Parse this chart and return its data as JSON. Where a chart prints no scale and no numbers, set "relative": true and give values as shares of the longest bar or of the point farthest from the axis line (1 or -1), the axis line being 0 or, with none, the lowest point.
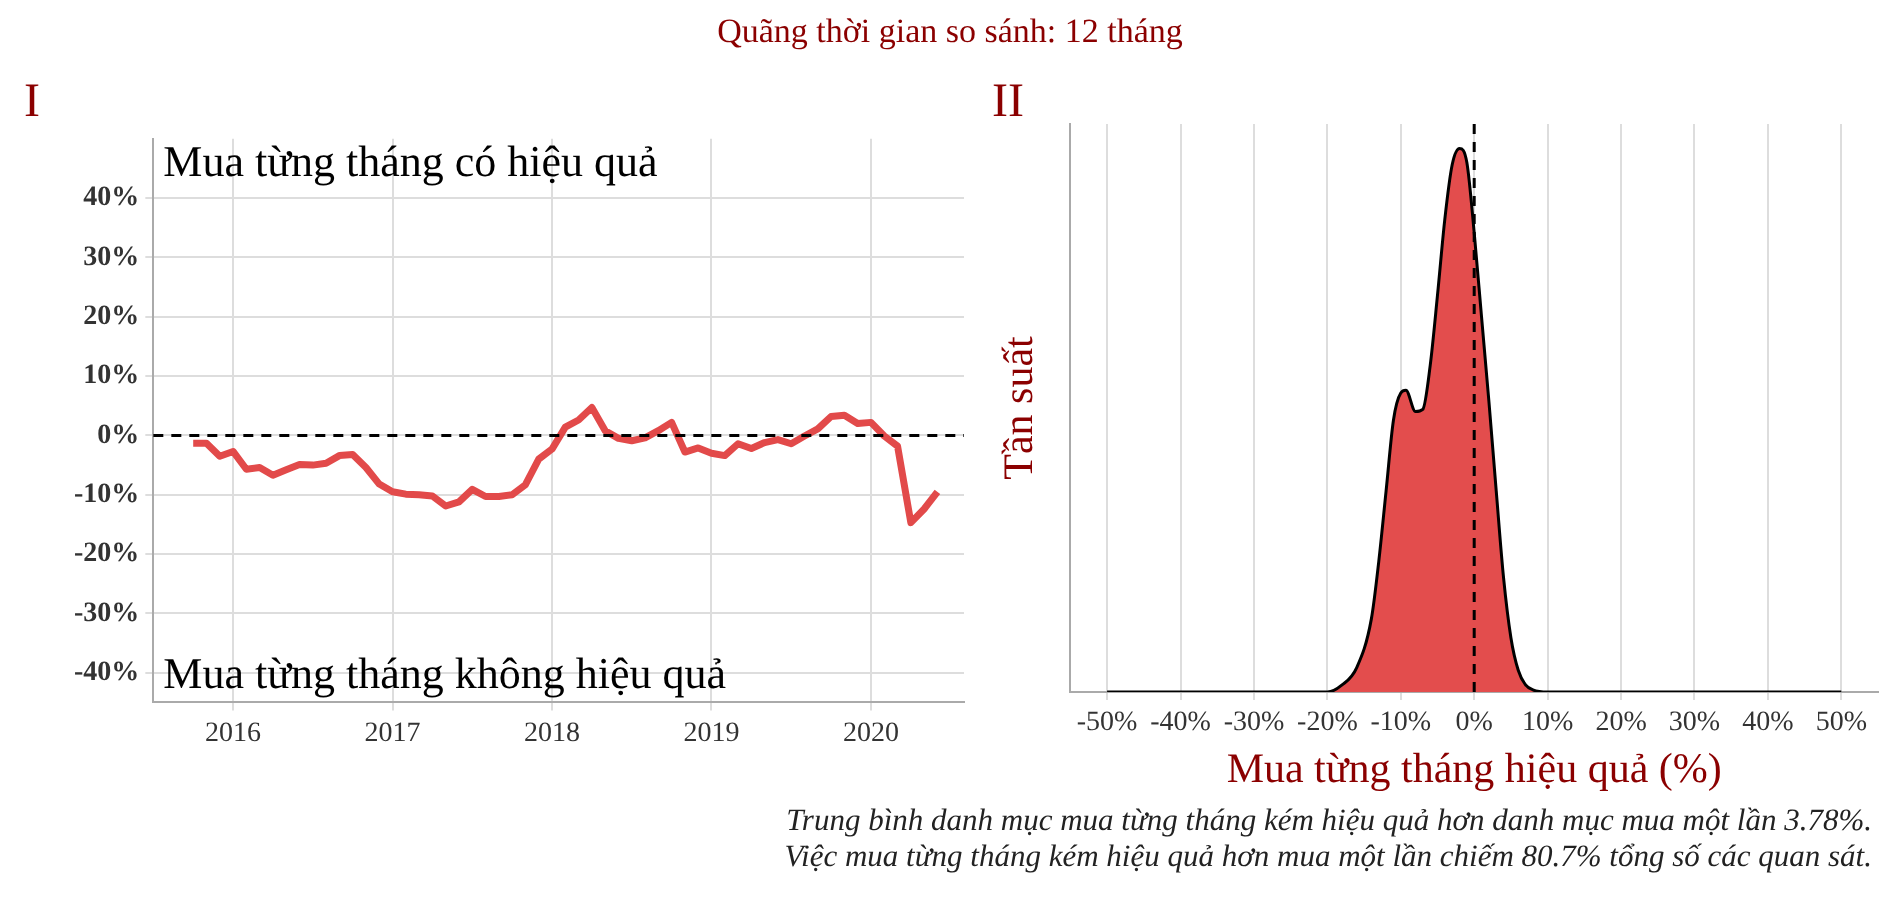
{
  "chart_data": [
    {
      "type": "line",
      "title": "Quãng thời gian so sánh: 12 tháng",
      "annotations": [
        "I",
        "Mua từng tháng có hiệu quả",
        "Mua từng tháng không hiệu quả"
      ],
      "x": [
        "2015-10",
        "2015-11",
        "2015-12",
        "2016-01",
        "2016-02",
        "2016-03",
        "2016-04",
        "2016-05",
        "2016-06",
        "2016-07",
        "2016-08",
        "2016-09",
        "2016-10",
        "2016-11",
        "2016-12",
        "2017-01",
        "2017-02",
        "2017-03",
        "2017-04",
        "2017-05",
        "2017-06",
        "2017-07",
        "2017-08",
        "2017-09",
        "2017-10",
        "2017-11",
        "2017-12",
        "2018-01",
        "2018-02",
        "2018-03",
        "2018-04",
        "2018-05",
        "2018-06",
        "2018-07",
        "2018-08",
        "2018-09",
        "2018-10",
        "2018-11",
        "2018-12",
        "2019-01",
        "2019-02",
        "2019-03",
        "2019-04",
        "2019-05",
        "2019-06",
        "2019-07",
        "2019-08",
        "2019-09",
        "2019-10",
        "2019-11",
        "2019-12",
        "2020-01",
        "2020-02",
        "2020-03",
        "2020-04",
        "2020-05",
        "2020-06"
      ],
      "series": [
        {
          "color": "#e24a4a",
          "values": [
            -1.3,
            -1.3,
            -3.5,
            -2.7,
            -5.7,
            -5.4,
            -6.7,
            -5.8,
            -4.9,
            -5,
            -4.7,
            -3.4,
            -3.2,
            -5.4,
            -8.2,
            -9.5,
            -9.9,
            -10,
            -10.2,
            -11.9,
            -11.2,
            -9.1,
            -10.3,
            -10.3,
            -10,
            -8.3,
            -4,
            -2.3,
            1.4,
            2.6,
            4.7,
            0.8,
            -0.5,
            -0.9,
            -0.4,
            0.8,
            2.2,
            -2.8,
            -2.1,
            -3,
            -3.4,
            -1.4,
            -2.2,
            -1.2,
            -0.7,
            -1.4,
            -0.1,
            1.1,
            3.2,
            3.4,
            2,
            2.2,
            -0.1,
            -1.8,
            -14.7,
            -12.4,
            -9.5
          ]
        }
      ],
      "xlim": [
        "2015-07",
        "2020-08"
      ],
      "xticks": [
        "2016",
        "2017",
        "2018",
        "2019",
        "2020"
      ],
      "ylim": [
        -45,
        50
      ],
      "yticks": [
        {
          "value": -40,
          "label": "-40%"
        },
        {
          "value": -30,
          "label": "-30%"
        },
        {
          "value": -20,
          "label": "-20%"
        },
        {
          "value": -10,
          "label": "-10%"
        },
        {
          "value": 0,
          "label": "0%"
        },
        {
          "value": 10,
          "label": "10%"
        },
        {
          "value": 20,
          "label": "20%"
        },
        {
          "value": 30,
          "label": "30%"
        },
        {
          "value": 40,
          "label": "40%"
        }
      ],
      "ref_lines": [
        {
          "axis": "y",
          "value": 0,
          "color": "#000000",
          "line_style": "dashed"
        }
      ],
      "grid": true,
      "marker": "none",
      "line_style": "solid"
    },
    {
      "type": "area",
      "annotations": [
        "II",
        "Trung bình danh mục mua từng tháng kém hiệu quả hơn danh mục mua một lần 3.78%.",
        "Việc mua từng tháng kém hiệu quả hơn mua một lần chiếm 80.7% tổng số các quan sát."
      ],
      "xlabel": "Mua từng tháng hiệu quả (%)",
      "ylabel": "Tần suất",
      "relative": true,
      "x": [
        -50,
        -20,
        -18,
        -16,
        -14,
        -13,
        -12,
        -11,
        -10,
        -9.3,
        -8,
        -7,
        -6,
        -5,
        -4,
        -3,
        -2,
        -1,
        0,
        1,
        2,
        3,
        4,
        5,
        6,
        7,
        8,
        10,
        50
      ],
      "series": [
        {
          "color": "#e34d4d",
          "values": [
            0,
            0,
            0.013,
            0.045,
            0.135,
            0.24,
            0.37,
            0.5,
            0.55,
            0.555,
            0.516,
            0.52,
            0.6,
            0.73,
            0.87,
            0.97,
            1,
            0.974,
            0.845,
            0.69,
            0.535,
            0.37,
            0.21,
            0.1,
            0.04,
            0.013,
            0.004,
            0,
            0
          ]
        }
      ],
      "xlim": [
        -55,
        55
      ],
      "xticks": [
        {
          "value": -50,
          "label": "-50%"
        },
        {
          "value": -40,
          "label": "-40%"
        },
        {
          "value": -30,
          "label": "-30%"
        },
        {
          "value": -20,
          "label": "-20%"
        },
        {
          "value": -10,
          "label": "-10%"
        },
        {
          "value": 0,
          "label": "0%"
        },
        {
          "value": 10,
          "label": "10%"
        },
        {
          "value": 20,
          "label": "20%"
        },
        {
          "value": 30,
          "label": "30%"
        },
        {
          "value": 40,
          "label": "40%"
        },
        {
          "value": 50,
          "label": "50%"
        }
      ],
      "ref_lines": [
        {
          "axis": "x",
          "value": 0,
          "color": "#000000",
          "line_style": "dashed"
        }
      ],
      "grid": true,
      "marker": "none",
      "line_style": "solid"
    }
  ]
}
